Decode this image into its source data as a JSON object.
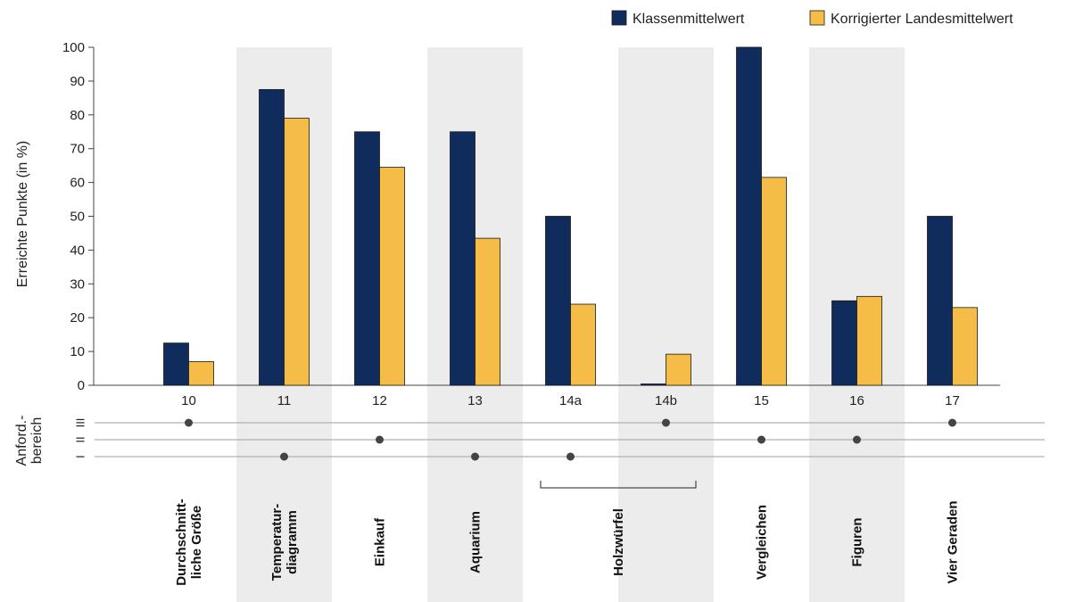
{
  "chart_data": {
    "type": "bar",
    "categories": [
      "10",
      "11",
      "12",
      "13",
      "14a",
      "14b",
      "15",
      "16",
      "17"
    ],
    "series": [
      {
        "name": "Klassenmittelwert",
        "values": [
          12.5,
          87.5,
          75,
          75,
          50,
          0.4,
          100,
          25,
          50
        ]
      },
      {
        "name": "Korrigierter Landesmittelwert",
        "values": [
          7,
          79,
          64.5,
          43.5,
          24,
          9.2,
          61.5,
          26.3,
          23
        ]
      }
    ],
    "colors": {
      "klassen": "#0f2c5c",
      "landes": "#f5bd47",
      "band": "#ececec"
    },
    "ylabel": "Erreichte Punkte (in %)",
    "ylim": [
      0,
      100
    ],
    "yticks": [
      "0",
      "10",
      "20",
      "30",
      "40",
      "50",
      "60",
      "70",
      "80",
      "90",
      "100"
    ],
    "legend_position": "top-right",
    "anforderungsbereich": {
      "label_line1": "Anford.-",
      "label_line2": "bereich",
      "levels": [
        "III",
        "II",
        "I"
      ],
      "values": [
        3,
        1,
        2,
        1,
        1,
        3,
        2,
        2,
        3
      ]
    },
    "tasks": [
      {
        "lines": [
          "Durchschnitt-",
          "liche Größe"
        ]
      },
      {
        "lines": [
          "Temperatur-",
          "diagramm"
        ]
      },
      {
        "lines": [
          "Einkauf"
        ]
      },
      {
        "lines": [
          "Aquarium"
        ]
      },
      {
        "lines": [
          "Holzwürfel"
        ],
        "span": 2
      },
      {
        "lines": [
          "Vergleichen"
        ]
      },
      {
        "lines": [
          "Figuren"
        ]
      },
      {
        "lines": [
          "Vier Geraden"
        ]
      }
    ]
  }
}
